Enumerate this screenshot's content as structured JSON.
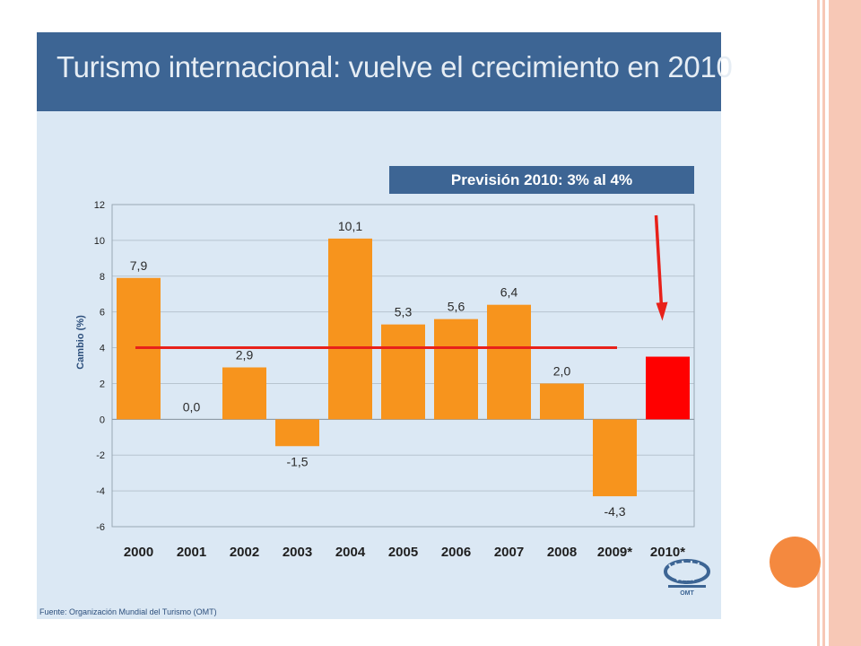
{
  "slide": {
    "title": "Turismo internacional: vuelve el crecimiento en 2010",
    "forecast": "Previsión 2010: 3% al 4%",
    "source": "Fuente: Organización Mundial del Turismo (OMT)",
    "logo_text": "OMT"
  },
  "chart_data": {
    "type": "bar",
    "categories": [
      "2000",
      "2001",
      "2002",
      "2003",
      "2004",
      "2005",
      "2006",
      "2007",
      "2008",
      "2009*",
      "2010*"
    ],
    "values": [
      7.9,
      0.0,
      2.9,
      -1.5,
      10.1,
      5.3,
      5.6,
      6.4,
      2.0,
      -4.3,
      3.5
    ],
    "data_labels": [
      "7,9",
      "0,0",
      "2,9",
      "-1,5",
      "10,1",
      "5,3",
      "5,6",
      "6,4",
      "2,0",
      "-4,3",
      ""
    ],
    "bar_colors": [
      "#f7941d",
      "#f7941d",
      "#f7941d",
      "#f7941d",
      "#f7941d",
      "#f7941d",
      "#f7941d",
      "#f7941d",
      "#f7941d",
      "#f7941d",
      "#ff0000"
    ],
    "ylabel": "Cambio (%)",
    "xlabel": "",
    "ylim": [
      -6,
      12
    ],
    "yticks": [
      12,
      10,
      8,
      6,
      4,
      2,
      0,
      -2,
      -4,
      -6
    ],
    "grid": true,
    "reference_line": {
      "value": 4,
      "from_category": "2000",
      "to_category": "2009*",
      "color": "#e8211a"
    },
    "arrow": {
      "target_category": "2010*",
      "color": "#e8211a"
    }
  }
}
